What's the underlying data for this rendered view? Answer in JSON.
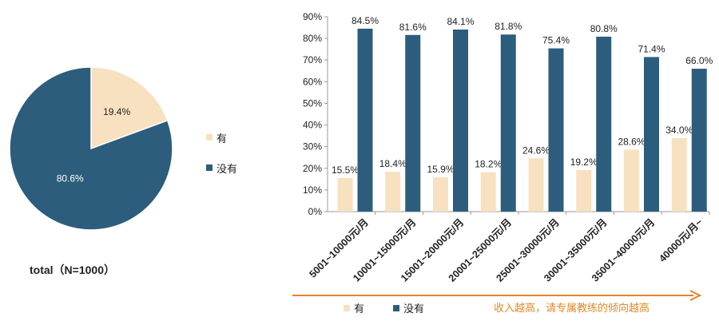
{
  "colors": {
    "yes": "#f8e1c0",
    "no": "#2c5d7c",
    "accent": "#e8822a"
  },
  "chart_data": [
    {
      "type": "pie",
      "labels": [
        "有",
        "没有"
      ],
      "values": [
        19.4,
        80.6
      ],
      "value_labels": [
        "19.4%",
        "80.6%"
      ],
      "legend": [
        "有",
        "没有"
      ],
      "legend_position": "right",
      "caption": "total（N=1000）"
    },
    {
      "type": "bar",
      "categories": [
        "5001~10000元/月",
        "10001~15000元/月",
        "15001~20000元/月",
        "20001~25000元/月",
        "25001~30000元/月",
        "30001~35000元/月",
        "35001~40000元/月",
        "40000元/月~"
      ],
      "series": [
        {
          "name": "有",
          "values": [
            15.5,
            18.4,
            15.9,
            18.2,
            24.6,
            19.2,
            28.6,
            34.0
          ],
          "labels": [
            "15.5%",
            "18.4%",
            "15.9%",
            "18.2%",
            "24.6%",
            "19.2%",
            "28.6%",
            "34.0%"
          ]
        },
        {
          "name": "没有",
          "values": [
            84.5,
            81.6,
            84.1,
            81.8,
            75.4,
            80.8,
            71.4,
            66.0
          ],
          "labels": [
            "84.5%",
            "81.6%",
            "84.1%",
            "81.8%",
            "75.4%",
            "80.8%",
            "71.4%",
            "66.0%"
          ]
        }
      ],
      "yticks": [
        "0%",
        "10%",
        "20%",
        "30%",
        "40%",
        "50%",
        "60%",
        "70%",
        "80%",
        "90%"
      ],
      "ylim": [
        0,
        90
      ],
      "legend_position": "bottom",
      "annotation": "收入越高，请专属教练的倾向越高"
    }
  ]
}
